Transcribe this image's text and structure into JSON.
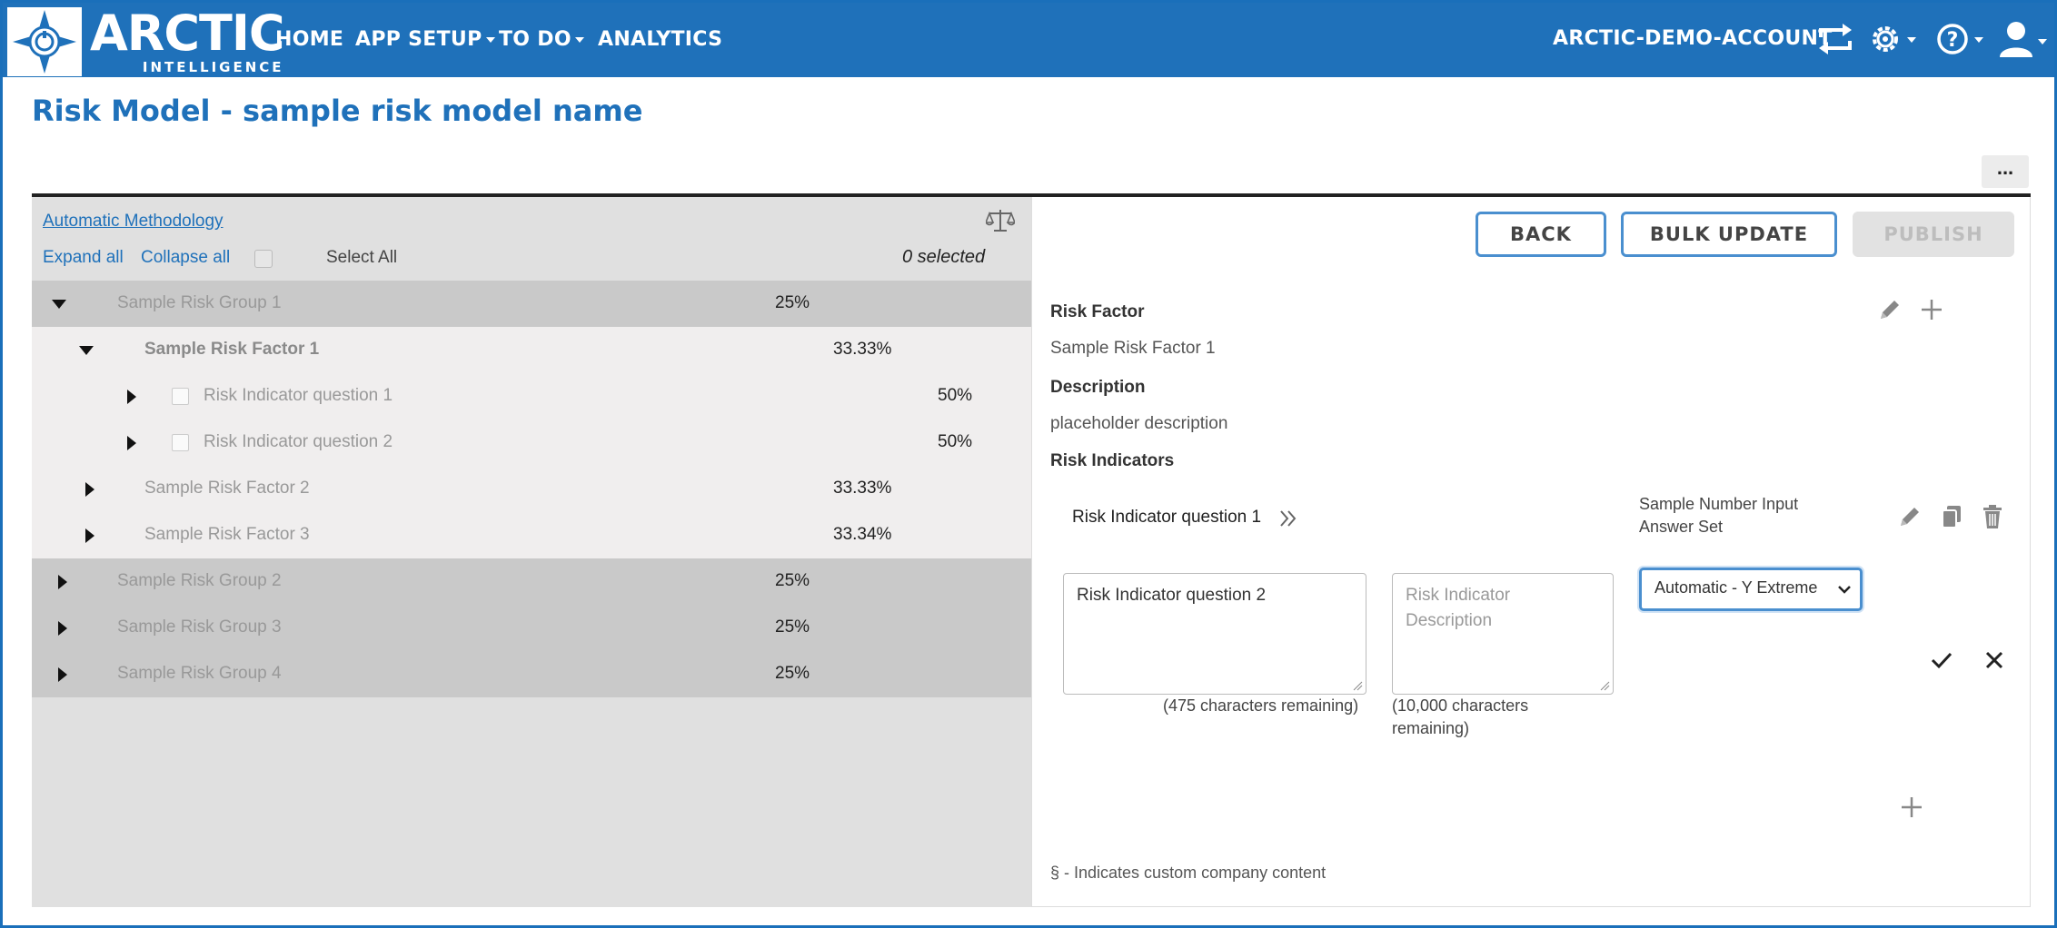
{
  "brand": {
    "name": "ARCTIC",
    "tagline": "INTELLIGENCE"
  },
  "nav": {
    "items": [
      {
        "label": "HOME",
        "dropdown": false
      },
      {
        "label": "APP SETUP",
        "dropdown": true
      },
      {
        "label": "TO DO",
        "dropdown": true
      },
      {
        "label": "ANALYTICS",
        "dropdown": false
      }
    ],
    "account": "ARCTIC-DEMO-ACCOUNT",
    "icons": [
      "switch-account-icon",
      "gear-icon",
      "help-icon",
      "user-icon"
    ]
  },
  "page": {
    "title": "Risk Model - sample risk model name",
    "more_label": "..."
  },
  "left": {
    "methodology_link": "Automatic Methodology",
    "expand_all": "Expand all",
    "collapse_all": "Collapse all",
    "select_all": "Select All",
    "selected_count": "0 selected",
    "tree": [
      {
        "type": "group",
        "label": "Sample Risk Group 1",
        "pct": "25%",
        "expanded": true
      },
      {
        "type": "factor",
        "label": "Sample Risk Factor 1",
        "pct": "33.33%",
        "expanded": true
      },
      {
        "type": "indicator",
        "label": "Risk Indicator question 1",
        "pct": "50%"
      },
      {
        "type": "indicator",
        "label": "Risk Indicator question 2",
        "pct": "50%"
      },
      {
        "type": "factor",
        "label": "Sample Risk Factor 2",
        "pct": "33.33%",
        "expanded": false
      },
      {
        "type": "factor",
        "label": "Sample Risk Factor 3",
        "pct": "33.34%",
        "expanded": false
      },
      {
        "type": "group",
        "label": "Sample Risk Group 2",
        "pct": "25%",
        "expanded": false
      },
      {
        "type": "group",
        "label": "Sample Risk Group 3",
        "pct": "25%",
        "expanded": false
      },
      {
        "type": "group",
        "label": "Sample Risk Group 4",
        "pct": "25%",
        "expanded": false
      }
    ]
  },
  "right": {
    "buttons": {
      "back": "BACK",
      "bulk_update": "BULK UPDATE",
      "publish": "PUBLISH"
    },
    "risk_factor_label": "Risk Factor",
    "risk_factor_value": "Sample Risk Factor 1",
    "description_label": "Description",
    "description_value": "placeholder description",
    "risk_indicators_label": "Risk Indicators",
    "indicator_row": {
      "question": "Risk Indicator question 1",
      "answer_set": "Sample Number Input Answer Set"
    },
    "edit_row": {
      "question_value": "Risk Indicator question 2",
      "question_hint": "(475 characters remaining)",
      "description_placeholder": "Risk Indicator Description",
      "description_hint": "(10,000 characters remaining)",
      "selected_option": "Automatic - Y Extreme"
    },
    "footnote": "§ - Indicates custom company content"
  }
}
